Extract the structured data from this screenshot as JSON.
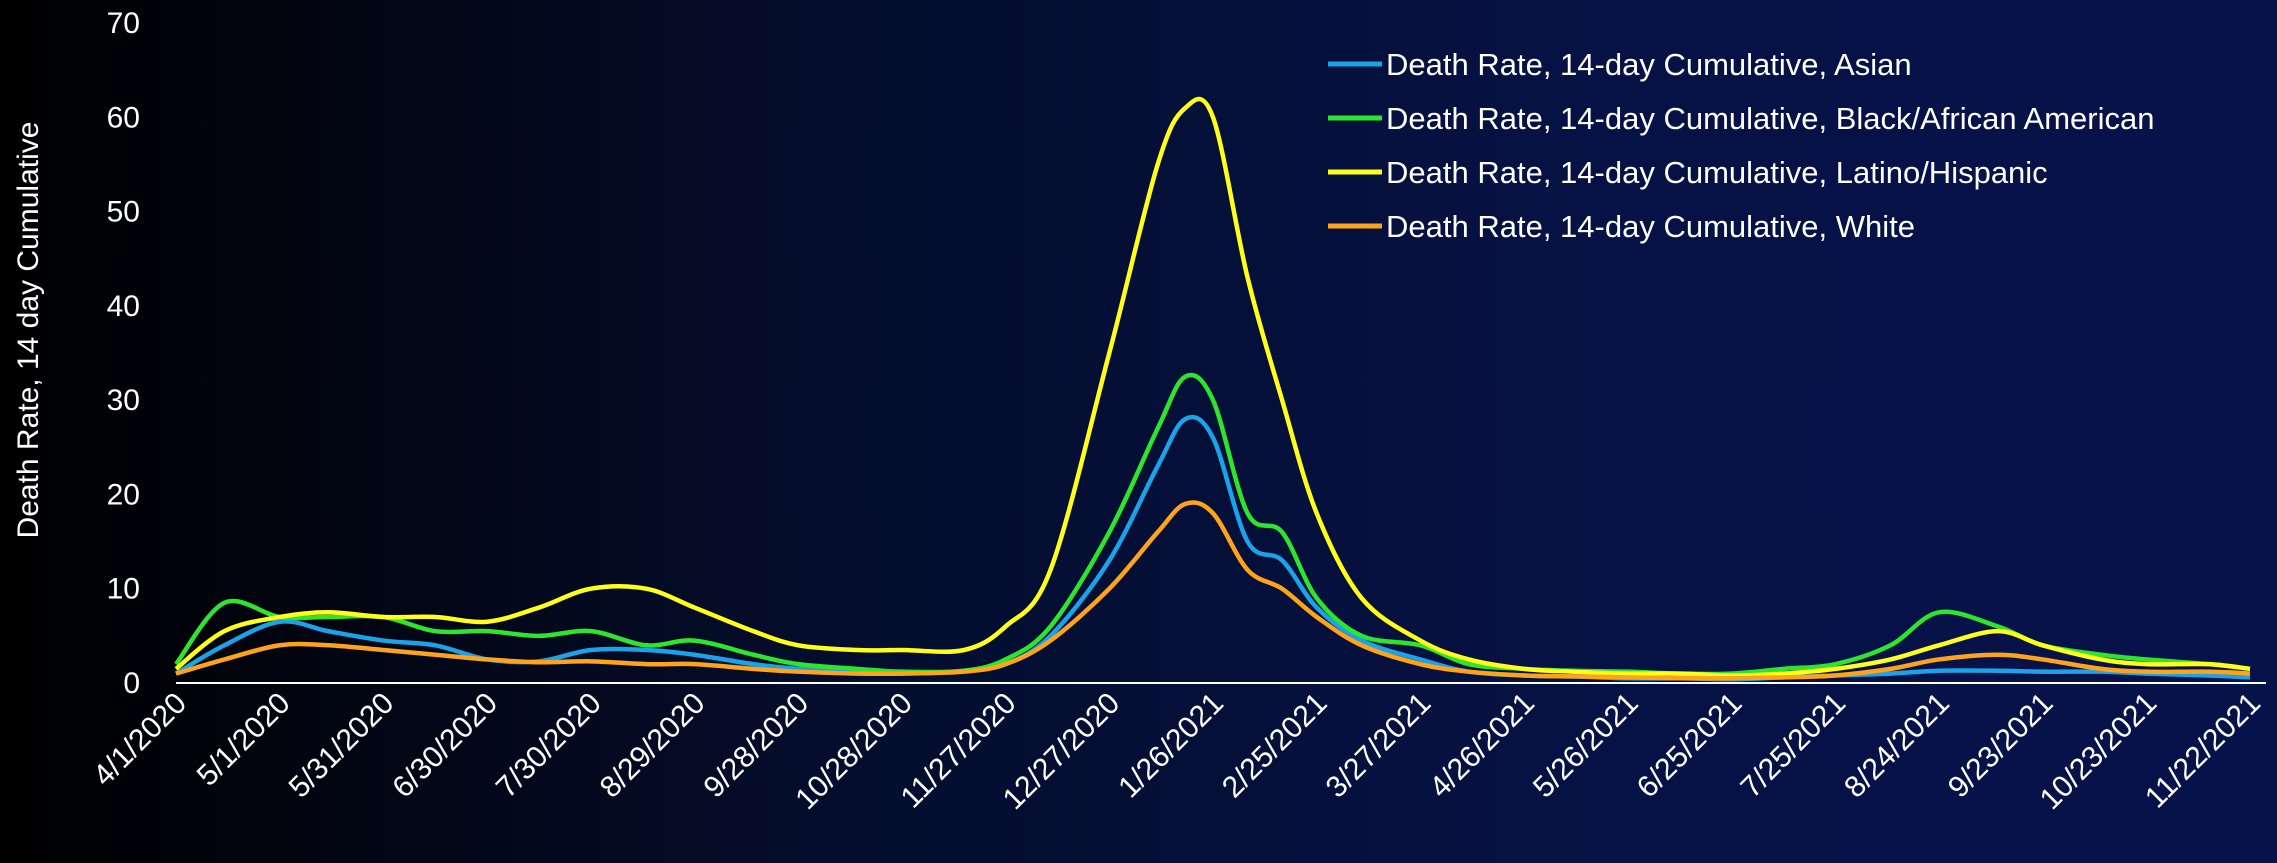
{
  "chart_data": {
    "type": "line",
    "title": "",
    "xlabel": "",
    "ylabel": "Death Rate,  14 day Cumulative",
    "ylim": [
      0,
      70
    ],
    "yticks": [
      0,
      10,
      20,
      30,
      40,
      50,
      60,
      70
    ],
    "grid": false,
    "legend": "top-right",
    "x_tick_labels": [
      "4/1/2020",
      "5/1/2020",
      "5/31/2020",
      "6/30/2020",
      "7/30/2020",
      "8/29/2020",
      "9/28/2020",
      "10/28/2020",
      "11/27/2020",
      "12/27/2020",
      "1/26/2021",
      "2/25/2021",
      "3/27/2021",
      "4/26/2021",
      "5/26/2021",
      "6/25/2021",
      "7/25/2021",
      "8/24/2021",
      "9/23/2021",
      "10/23/2021",
      "11/22/2021"
    ],
    "x": [
      "4/1/2020",
      "4/15/2020",
      "5/1/2020",
      "5/15/2020",
      "5/31/2020",
      "6/15/2020",
      "6/30/2020",
      "7/15/2020",
      "7/30/2020",
      "8/15/2020",
      "8/29/2020",
      "9/15/2020",
      "9/28/2020",
      "10/15/2020",
      "10/28/2020",
      "11/15/2020",
      "11/27/2020",
      "12/10/2020",
      "12/27/2020",
      "1/10/2021",
      "1/18/2021",
      "1/26/2021",
      "2/5/2021",
      "2/15/2021",
      "2/25/2021",
      "3/10/2021",
      "3/27/2021",
      "4/10/2021",
      "4/26/2021",
      "5/10/2021",
      "5/26/2021",
      "6/10/2021",
      "6/25/2021",
      "7/10/2021",
      "7/25/2021",
      "8/10/2021",
      "8/24/2021",
      "9/10/2021",
      "9/23/2021",
      "10/10/2021",
      "10/23/2021",
      "11/10/2021",
      "11/22/2021"
    ],
    "series": [
      {
        "name": "Death Rate, 14-day Cumulative, Asian",
        "color": "#1aa3e8",
        "values": [
          1.0,
          4.0,
          6.5,
          5.5,
          4.5,
          4.0,
          2.5,
          2.3,
          3.5,
          3.5,
          3.0,
          2.0,
          1.5,
          1.2,
          1.0,
          1.3,
          2.0,
          5.0,
          13.0,
          23.0,
          28.0,
          26.0,
          15.0,
          13.0,
          8.0,
          4.5,
          2.5,
          1.2,
          0.8,
          0.7,
          0.5,
          0.5,
          0.4,
          0.6,
          0.8,
          1.0,
          1.3,
          1.3,
          1.2,
          1.2,
          1.0,
          0.8,
          0.6
        ]
      },
      {
        "name": "Death Rate, 14-day Cumulative, Black/African American",
        "color": "#2ee52e",
        "values": [
          2.0,
          8.5,
          7.0,
          7.0,
          7.0,
          5.5,
          5.5,
          5.0,
          5.5,
          4.0,
          4.5,
          3.0,
          2.0,
          1.5,
          1.2,
          1.3,
          2.5,
          6.0,
          16.0,
          27.0,
          32.5,
          30.0,
          18.0,
          16.0,
          9.0,
          5.0,
          4.0,
          2.0,
          1.5,
          1.3,
          1.2,
          1.0,
          1.0,
          1.5,
          2.0,
          4.0,
          7.5,
          6.0,
          4.0,
          3.0,
          2.5,
          2.0,
          1.5
        ]
      },
      {
        "name": "Death Rate, 14-day Cumulative, Latino/Hispanic",
        "color": "#ffff1a",
        "values": [
          1.5,
          5.5,
          7.0,
          7.5,
          7.0,
          7.0,
          6.5,
          8.0,
          10.0,
          10.0,
          8.0,
          5.5,
          4.0,
          3.5,
          3.5,
          3.5,
          6.0,
          12.0,
          35.0,
          55.0,
          61.0,
          60.0,
          43.0,
          30.0,
          18.0,
          9.0,
          4.5,
          2.5,
          1.5,
          1.2,
          1.0,
          1.0,
          0.8,
          1.0,
          1.5,
          2.5,
          4.0,
          5.5,
          4.0,
          2.5,
          2.0,
          2.0,
          1.5
        ]
      },
      {
        "name": "Death Rate, 14-day Cumulative, White",
        "color": "#ffa31a",
        "values": [
          1.0,
          2.5,
          4.0,
          4.0,
          3.5,
          3.0,
          2.5,
          2.2,
          2.3,
          2.0,
          2.0,
          1.5,
          1.2,
          1.0,
          1.0,
          1.2,
          2.0,
          4.5,
          10.0,
          16.0,
          19.0,
          18.0,
          12.0,
          10.0,
          7.0,
          4.0,
          2.0,
          1.2,
          0.8,
          0.7,
          0.6,
          0.5,
          0.5,
          0.6,
          0.8,
          1.5,
          2.5,
          3.0,
          2.5,
          1.5,
          1.2,
          1.2,
          1.0
        ]
      }
    ]
  }
}
